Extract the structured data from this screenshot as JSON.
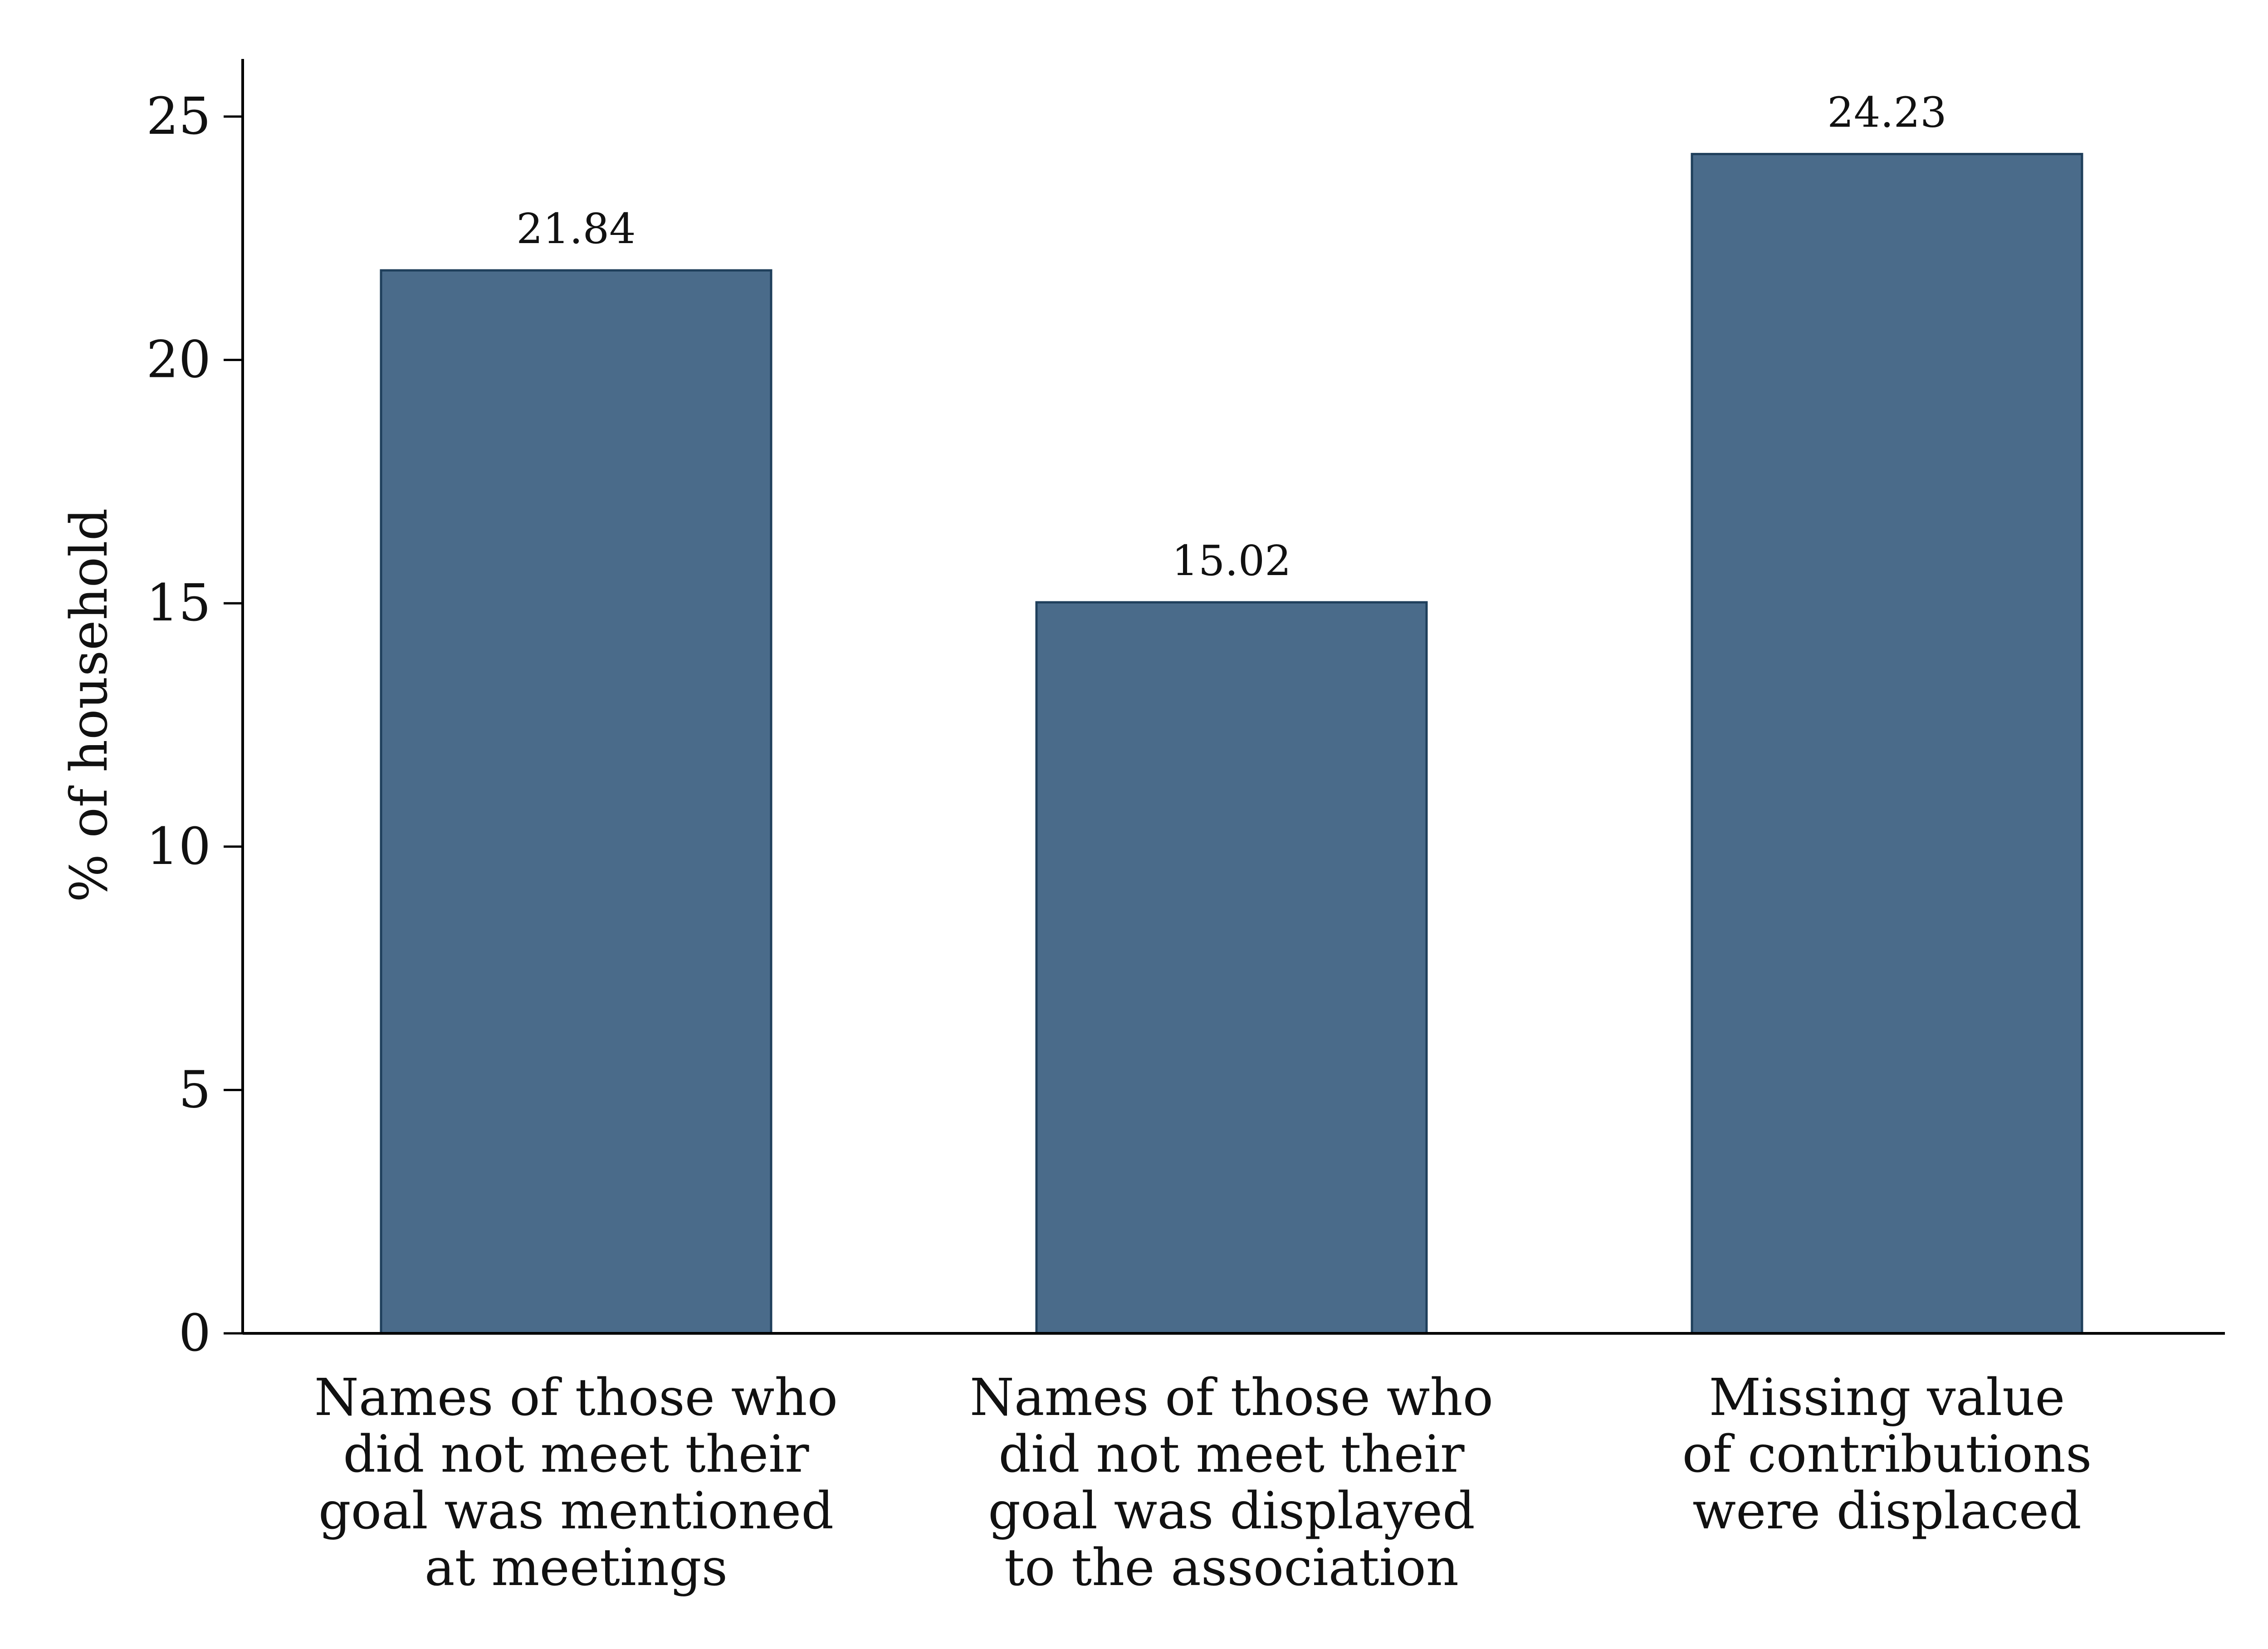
{
  "chart_data": {
    "type": "bar",
    "title": "",
    "xlabel": "",
    "ylabel": "% of household",
    "ylim": [
      0,
      26
    ],
    "yticks": [
      0,
      5,
      10,
      15,
      20,
      25
    ],
    "grid": false,
    "legend": "none",
    "bar_color": "#4a6b8a",
    "bar_edge_color": "#1f3f5b",
    "categories": [
      [
        "Names of those who",
        "did not meet their",
        "goal was mentioned",
        "at meetings"
      ],
      [
        "Names of those who",
        "did not meet their",
        "goal was displayed",
        "to the association"
      ],
      [
        "Missing value",
        "of contributions",
        "were displaced"
      ]
    ],
    "values": [
      21.84,
      15.02,
      24.23
    ],
    "value_labels": [
      "21.84",
      "15.02",
      "24.23"
    ]
  }
}
